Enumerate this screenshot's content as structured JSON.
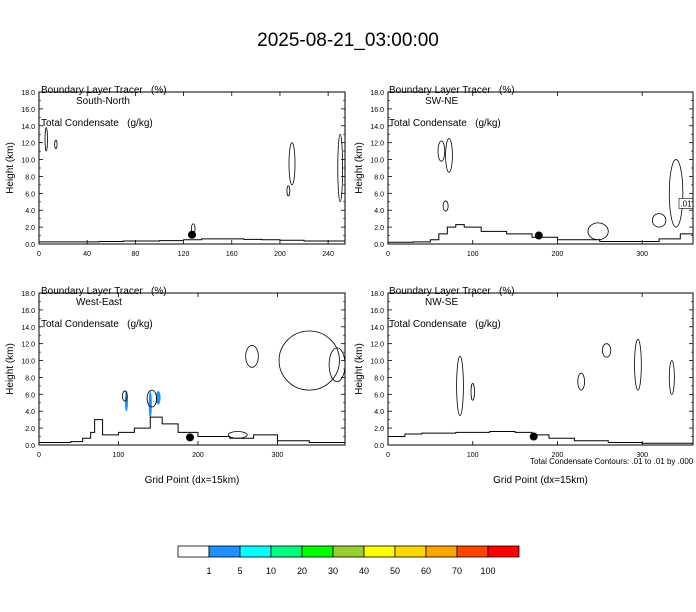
{
  "title": "2025-08-21_03:00:00",
  "footnote": "Total Condensate Contours: .01 to .01 by .000",
  "colorbar": {
    "labels": [
      "1",
      "5",
      "10",
      "20",
      "30",
      "40",
      "50",
      "60",
      "70",
      "100"
    ],
    "colors": [
      "#ffffff",
      "#1e90ff",
      "#00ffff",
      "#00ff7f",
      "#00ff00",
      "#9acd32",
      "#ffff00",
      "#ffd700",
      "#ffa500",
      "#ff4500",
      "#ff0000"
    ]
  },
  "chart_data": [
    {
      "type": "contour",
      "panel": "South-North",
      "title_line1": "Boundary Layer Tracer   (%)",
      "title_line2": "Total Condensate   (g/kg)",
      "xlabel": "",
      "ylabel": "Height (km)",
      "xlim": [
        0,
        254
      ],
      "ylim": [
        0,
        18
      ],
      "xticks": [
        "0",
        "40",
        "80",
        "120",
        "160",
        "200",
        "240"
      ],
      "xtick_values": [
        0,
        40,
        80,
        120,
        160,
        200,
        240
      ],
      "yticks": [
        "0.0",
        "2.0",
        "4.0",
        "6.0",
        "8.0",
        "10.0",
        "12.0",
        "14.0",
        "16.0",
        "18.0"
      ],
      "terrain": [
        [
          0,
          0.25
        ],
        [
          30,
          0.25
        ],
        [
          50,
          0.3
        ],
        [
          70,
          0.35
        ],
        [
          100,
          0.4
        ],
        [
          120,
          0.5
        ],
        [
          135,
          0.6
        ],
        [
          150,
          0.6
        ],
        [
          170,
          0.55
        ],
        [
          185,
          0.5
        ],
        [
          200,
          0.45
        ],
        [
          220,
          0.35
        ],
        [
          254,
          0.3
        ]
      ],
      "marker": [
        127,
        1.1
      ],
      "contours": [
        [
          14,
          0.3,
          11.8,
          0.5
        ],
        [
          6,
          0.6,
          12.4,
          1.4
        ],
        [
          210,
          2.5,
          9.5,
          2.5
        ],
        [
          207,
          1.2,
          6.3,
          0.6
        ],
        [
          128,
          1.5,
          1.8,
          0.6
        ],
        [
          250,
          2,
          9,
          4
        ]
      ],
      "shaded": []
    },
    {
      "type": "contour",
      "panel": "SW-NE",
      "title_line1": "Boundary Layer Tracer   (%)",
      "title_line2": "Total Condensate   (g/kg)",
      "xlabel": "",
      "ylabel": "Height (km)",
      "xlim": [
        0,
        360
      ],
      "ylim": [
        0,
        18
      ],
      "xticks": [
        "0",
        "100",
        "200",
        "300"
      ],
      "xtick_values": [
        0,
        100,
        200,
        300
      ],
      "yticks": [
        "0.0",
        "2.0",
        "4.0",
        "6.0",
        "8.0",
        "10.0",
        "12.0",
        "14.0",
        "16.0",
        "18.0"
      ],
      "terrain": [
        [
          0,
          0.2
        ],
        [
          30,
          0.25
        ],
        [
          50,
          0.5
        ],
        [
          60,
          1.2
        ],
        [
          70,
          2
        ],
        [
          80,
          2.3
        ],
        [
          90,
          2.0
        ],
        [
          110,
          1.5
        ],
        [
          140,
          1.2
        ],
        [
          170,
          0.8
        ],
        [
          200,
          0.5
        ],
        [
          250,
          0.3
        ],
        [
          290,
          0.3
        ],
        [
          320,
          0.6
        ],
        [
          345,
          1.2
        ],
        [
          360,
          1.5
        ]
      ],
      "marker": [
        178,
        1.0
      ],
      "contours": [
        [
          72,
          4,
          10.5,
          2
        ],
        [
          63,
          4,
          11.0,
          1.2
        ],
        [
          68,
          3,
          4.5,
          0.6
        ],
        [
          248,
          12,
          1.5,
          1.0
        ],
        [
          340,
          8,
          6,
          4
        ],
        [
          320,
          8,
          2.8,
          0.8
        ]
      ],
      "label_box": ".01",
      "shaded": []
    },
    {
      "type": "contour",
      "panel": "West-East",
      "title_line1": "Boundary Layer Tracer   (%)",
      "title_line2": "Total Condensate   (g/kg)",
      "xlabel": "Grid Point (dx=15km)",
      "ylabel": "Height (km)",
      "xlim": [
        0,
        385
      ],
      "ylim": [
        0,
        18
      ],
      "xticks": [
        "0",
        "100",
        "200",
        "300"
      ],
      "xtick_values": [
        0,
        100,
        200,
        300
      ],
      "yticks": [
        "0.0",
        "2.0",
        "4.0",
        "6.0",
        "8.0",
        "10.0",
        "12.0",
        "14.0",
        "16.0",
        "18.0"
      ],
      "terrain": [
        [
          0,
          0.3
        ],
        [
          40,
          0.4
        ],
        [
          55,
          0.8
        ],
        [
          65,
          1.5
        ],
        [
          70,
          3.0
        ],
        [
          80,
          1.2
        ],
        [
          100,
          1.5
        ],
        [
          120,
          2.0
        ],
        [
          140,
          3.3
        ],
        [
          155,
          2.5
        ],
        [
          175,
          1.5
        ],
        [
          200,
          1.0
        ],
        [
          240,
          0.8
        ],
        [
          270,
          1.2
        ],
        [
          300,
          0.5
        ],
        [
          340,
          0.3
        ],
        [
          385,
          0.3
        ]
      ],
      "marker": [
        190,
        0.9
      ],
      "contours": [
        [
          340,
          38,
          10.0,
          3.5
        ],
        [
          268,
          8,
          10.5,
          1.3
        ],
        [
          375,
          10,
          9.5,
          2
        ],
        [
          108,
          3,
          5.8,
          0.6
        ],
        [
          142,
          6,
          5.5,
          1.0
        ],
        [
          250,
          12,
          1.2,
          0.4
        ]
      ],
      "shaded": [
        [
          110,
          2,
          5.2,
          1.2,
          "#1e90ff"
        ],
        [
          140,
          2,
          4.8,
          1.6,
          "#1e90ff"
        ],
        [
          150,
          3,
          5.6,
          0.8,
          "#1e90ff"
        ]
      ]
    },
    {
      "type": "contour",
      "panel": "NW-SE",
      "title_line1": "Boundary Layer Tracer   (%)",
      "title_line2": "Total Condensate   (g/kg)",
      "xlabel": "Grid Point (dx=15km)",
      "ylabel": "Height (km)",
      "xlim": [
        0,
        360
      ],
      "ylim": [
        0,
        18
      ],
      "xticks": [
        "0",
        "100",
        "200",
        "300"
      ],
      "xtick_values": [
        0,
        100,
        200,
        300
      ],
      "yticks": [
        "0.0",
        "2.0",
        "4.0",
        "6.0",
        "8.0",
        "10.0",
        "12.0",
        "14.0",
        "16.0",
        "18.0"
      ],
      "terrain": [
        [
          0,
          1.0
        ],
        [
          20,
          1.3
        ],
        [
          40,
          1.4
        ],
        [
          80,
          1.5
        ],
        [
          120,
          1.6
        ],
        [
          150,
          1.5
        ],
        [
          170,
          1.2
        ],
        [
          190,
          0.8
        ],
        [
          220,
          0.5
        ],
        [
          260,
          0.3
        ],
        [
          300,
          0.2
        ],
        [
          360,
          0.2
        ]
      ],
      "marker": [
        172,
        1.0
      ],
      "contours": [
        [
          85,
          4,
          7.0,
          3.5
        ],
        [
          100,
          2,
          6.3,
          1.0
        ],
        [
          228,
          4,
          7.5,
          1.0
        ],
        [
          295,
          4,
          9.5,
          3
        ],
        [
          258,
          5,
          11.2,
          0.8
        ],
        [
          335,
          3,
          8.0,
          2
        ]
      ],
      "shaded": []
    }
  ]
}
